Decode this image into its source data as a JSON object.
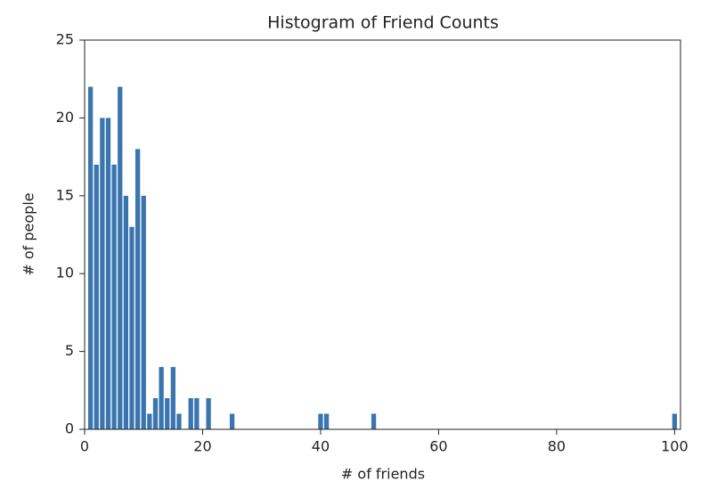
{
  "chart_data": {
    "type": "bar",
    "title": "Histogram of Friend Counts",
    "xlabel": "# of friends",
    "ylabel": "# of people",
    "x": [
      1,
      2,
      3,
      4,
      5,
      6,
      7,
      8,
      9,
      10,
      11,
      12,
      13,
      14,
      15,
      16,
      18,
      19,
      21,
      25,
      40,
      41,
      49,
      100
    ],
    "values": [
      22,
      17,
      20,
      20,
      17,
      22,
      15,
      13,
      18,
      15,
      1,
      2,
      4,
      2,
      4,
      1,
      2,
      2,
      2,
      1,
      1,
      1,
      1,
      1
    ],
    "color": "#3b75af",
    "xlim": [
      0,
      101
    ],
    "xticks": [
      0,
      20,
      40,
      60,
      80,
      100
    ],
    "ylim": [
      0,
      25
    ],
    "yticks": [
      0,
      5,
      10,
      15,
      20,
      25
    ],
    "grid": false
  }
}
